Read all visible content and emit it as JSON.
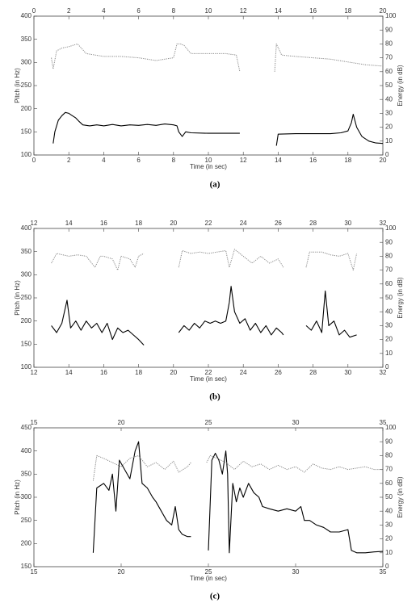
{
  "chart_data": [
    {
      "type": "line",
      "caption": "(a)",
      "xlabel": "Time (in sec)",
      "ylabel": "Pitch (in Hz)",
      "y2label": "Energy (in dB)",
      "xlim": [
        0,
        20
      ],
      "xticks": [
        0,
        2,
        4,
        6,
        8,
        10,
        12,
        14,
        16,
        18,
        20
      ],
      "ylim": [
        100,
        400
      ],
      "yticks": [
        100,
        150,
        200,
        250,
        300,
        350,
        400
      ],
      "y2lim": [
        0,
        100
      ],
      "y2ticks": [
        0,
        10,
        20,
        30,
        40,
        50,
        60,
        70,
        80,
        90,
        100
      ],
      "series": [
        {
          "color": "#000000",
          "linestyle": "solid",
          "x": [
            1.1,
            1.2,
            1.4,
            1.6,
            1.8,
            2.0,
            2.2,
            2.4,
            2.6,
            2.8,
            3.2,
            3.6,
            4.0,
            4.5,
            5.0,
            5.5,
            6.0,
            6.5,
            7.0,
            7.5,
            8.0,
            8.2,
            8.3,
            8.5,
            8.7,
            9.0,
            10.0,
            11.0,
            11.8,
            null,
            13.9,
            14.0,
            15.0,
            16.0,
            17.0,
            17.6,
            18.0,
            18.2,
            18.3,
            18.5,
            18.8,
            19.2,
            19.6,
            20.0
          ],
          "values": [
            125,
            150,
            175,
            185,
            192,
            190,
            185,
            180,
            172,
            165,
            163,
            165,
            163,
            166,
            163,
            165,
            164,
            166,
            164,
            167,
            165,
            163,
            150,
            140,
            150,
            148,
            147,
            147,
            147,
            null,
            120,
            145,
            146,
            146,
            146,
            148,
            152,
            170,
            188,
            160,
            140,
            130,
            126,
            125
          ]
        },
        {
          "color": "#888888",
          "linestyle": "dotted",
          "axis": "y2",
          "x": [
            1.0,
            1.1,
            1.3,
            1.6,
            2.0,
            2.5,
            3.0,
            4.0,
            5.0,
            6.0,
            7.0,
            8.0,
            8.2,
            8.4,
            8.6,
            9.0,
            10.0,
            11.0,
            11.6,
            11.8,
            null,
            13.8,
            13.9,
            14.2,
            15.0,
            16.0,
            17.0,
            18.0,
            19.0,
            20.0
          ],
          "values": [
            70,
            62,
            75,
            77,
            78,
            80,
            73,
            71,
            71,
            70,
            68,
            70,
            80,
            80,
            79,
            73,
            73,
            73,
            72,
            60,
            null,
            60,
            80,
            72,
            71,
            70,
            69,
            67,
            65,
            64
          ]
        }
      ]
    },
    {
      "type": "line",
      "caption": "(b)",
      "xlabel": "Time (in sec)",
      "ylabel": "Pitch (in Hz)",
      "y2label": "Energy (in dB)",
      "xlim": [
        12,
        32
      ],
      "xticks": [
        12,
        14,
        16,
        18,
        20,
        22,
        24,
        26,
        28,
        30,
        32
      ],
      "ylim": [
        100,
        400
      ],
      "yticks": [
        100,
        150,
        200,
        250,
        300,
        350,
        400
      ],
      "y2lim": [
        0,
        100
      ],
      "y2ticks": [
        0,
        10,
        20,
        30,
        40,
        50,
        60,
        70,
        80,
        90,
        100
      ],
      "series": [
        {
          "color": "#000000",
          "linestyle": "solid",
          "x": [
            13.0,
            13.3,
            13.6,
            13.9,
            14.1,
            14.4,
            14.7,
            15.0,
            15.3,
            15.6,
            15.9,
            16.2,
            16.5,
            16.8,
            17.1,
            17.4,
            17.7,
            18.0,
            18.3,
            null,
            20.3,
            20.6,
            20.9,
            21.2,
            21.5,
            21.8,
            22.1,
            22.4,
            22.7,
            23.0,
            23.2,
            23.3,
            23.5,
            23.8,
            24.1,
            24.4,
            24.7,
            25.0,
            25.3,
            25.6,
            25.9,
            26.2,
            26.3,
            null,
            27.6,
            27.9,
            28.2,
            28.5,
            28.7,
            28.9,
            29.2,
            29.5,
            29.8,
            30.1,
            30.5
          ],
          "values": [
            190,
            175,
            195,
            245,
            185,
            200,
            180,
            200,
            185,
            195,
            175,
            195,
            160,
            185,
            175,
            180,
            170,
            160,
            148,
            null,
            175,
            190,
            180,
            195,
            185,
            200,
            195,
            200,
            195,
            200,
            240,
            275,
            220,
            195,
            205,
            180,
            195,
            175,
            190,
            170,
            185,
            175,
            170,
            null,
            190,
            180,
            200,
            175,
            265,
            190,
            200,
            170,
            180,
            165,
            170
          ]
        },
        {
          "color": "#888888",
          "linestyle": "dotted",
          "axis": "y2",
          "x": [
            13.0,
            13.3,
            14.0,
            14.5,
            15.0,
            15.5,
            15.8,
            16.0,
            16.5,
            16.8,
            17.0,
            17.5,
            17.8,
            18.0,
            18.3,
            null,
            20.3,
            20.5,
            21.0,
            21.5,
            22.0,
            22.5,
            23.0,
            23.2,
            23.5,
            24.0,
            24.5,
            25.0,
            25.5,
            26.0,
            26.3,
            null,
            27.6,
            27.8,
            28.5,
            29.0,
            29.5,
            30.0,
            30.3,
            30.5
          ],
          "values": [
            75,
            82,
            80,
            81,
            80,
            72,
            80,
            80,
            78,
            70,
            80,
            78,
            72,
            80,
            82,
            null,
            72,
            84,
            82,
            83,
            82,
            83,
            84,
            72,
            85,
            80,
            75,
            80,
            75,
            78,
            72,
            null,
            72,
            83,
            83,
            81,
            80,
            82,
            70,
            82
          ]
        }
      ]
    },
    {
      "type": "line",
      "caption": "(c)",
      "xlabel": "Time (in sec)",
      "ylabel": "Pitch (in Hz)",
      "y2label": "Energy (in dB)",
      "xlim": [
        15,
        35
      ],
      "xticks": [
        15,
        20,
        25,
        30,
        35
      ],
      "ylim": [
        150,
        450
      ],
      "yticks": [
        150,
        200,
        250,
        300,
        350,
        400,
        450
      ],
      "y2lim": [
        0,
        100
      ],
      "y2ticks": [
        0,
        10,
        20,
        30,
        40,
        50,
        60,
        70,
        80,
        90,
        100
      ],
      "series": [
        {
          "color": "#000000",
          "linestyle": "solid",
          "x": [
            18.4,
            18.6,
            19.0,
            19.3,
            19.5,
            19.7,
            19.9,
            20.2,
            20.5,
            20.8,
            21.0,
            21.2,
            21.5,
            21.8,
            22.0,
            22.3,
            22.6,
            22.9,
            23.1,
            23.3,
            23.5,
            23.8,
            24.0,
            null,
            25.0,
            25.2,
            25.4,
            25.6,
            25.8,
            26.0,
            26.1,
            26.2,
            26.4,
            26.6,
            26.8,
            27.0,
            27.3,
            27.6,
            27.9,
            28.1,
            28.5,
            29.0,
            29.5,
            30.0,
            30.3,
            30.5,
            30.8,
            31.2,
            31.6,
            32.0,
            32.5,
            33.0,
            33.2,
            33.5,
            34.0,
            34.5,
            35.0
          ],
          "values": [
            180,
            320,
            330,
            315,
            350,
            270,
            380,
            360,
            340,
            400,
            420,
            330,
            320,
            300,
            290,
            270,
            250,
            240,
            280,
            230,
            220,
            215,
            215,
            null,
            185,
            380,
            395,
            380,
            350,
            400,
            350,
            180,
            330,
            290,
            320,
            300,
            330,
            310,
            300,
            280,
            275,
            270,
            275,
            270,
            280,
            250,
            250,
            240,
            235,
            225,
            225,
            230,
            185,
            180,
            180,
            182,
            183
          ]
        },
        {
          "color": "#888888",
          "linestyle": "dotted",
          "axis": "y2",
          "x": [
            18.4,
            18.6,
            19.0,
            19.5,
            20.0,
            20.5,
            21.0,
            21.5,
            22.0,
            22.5,
            23.0,
            23.3,
            23.8,
            24.0,
            null,
            24.9,
            25.1,
            25.5,
            26.0,
            26.5,
            27.0,
            27.5,
            28.0,
            28.5,
            29.0,
            29.5,
            30.0,
            30.5,
            31.0,
            31.5,
            32.0,
            32.5,
            33.0,
            33.5,
            34.0,
            34.5,
            35.0
          ],
          "values": [
            62,
            80,
            78,
            75,
            72,
            78,
            80,
            72,
            75,
            70,
            76,
            68,
            72,
            75,
            null,
            75,
            80,
            78,
            75,
            70,
            76,
            72,
            74,
            70,
            73,
            70,
            72,
            68,
            74,
            71,
            70,
            72,
            70,
            71,
            72,
            70,
            70
          ]
        }
      ]
    }
  ]
}
